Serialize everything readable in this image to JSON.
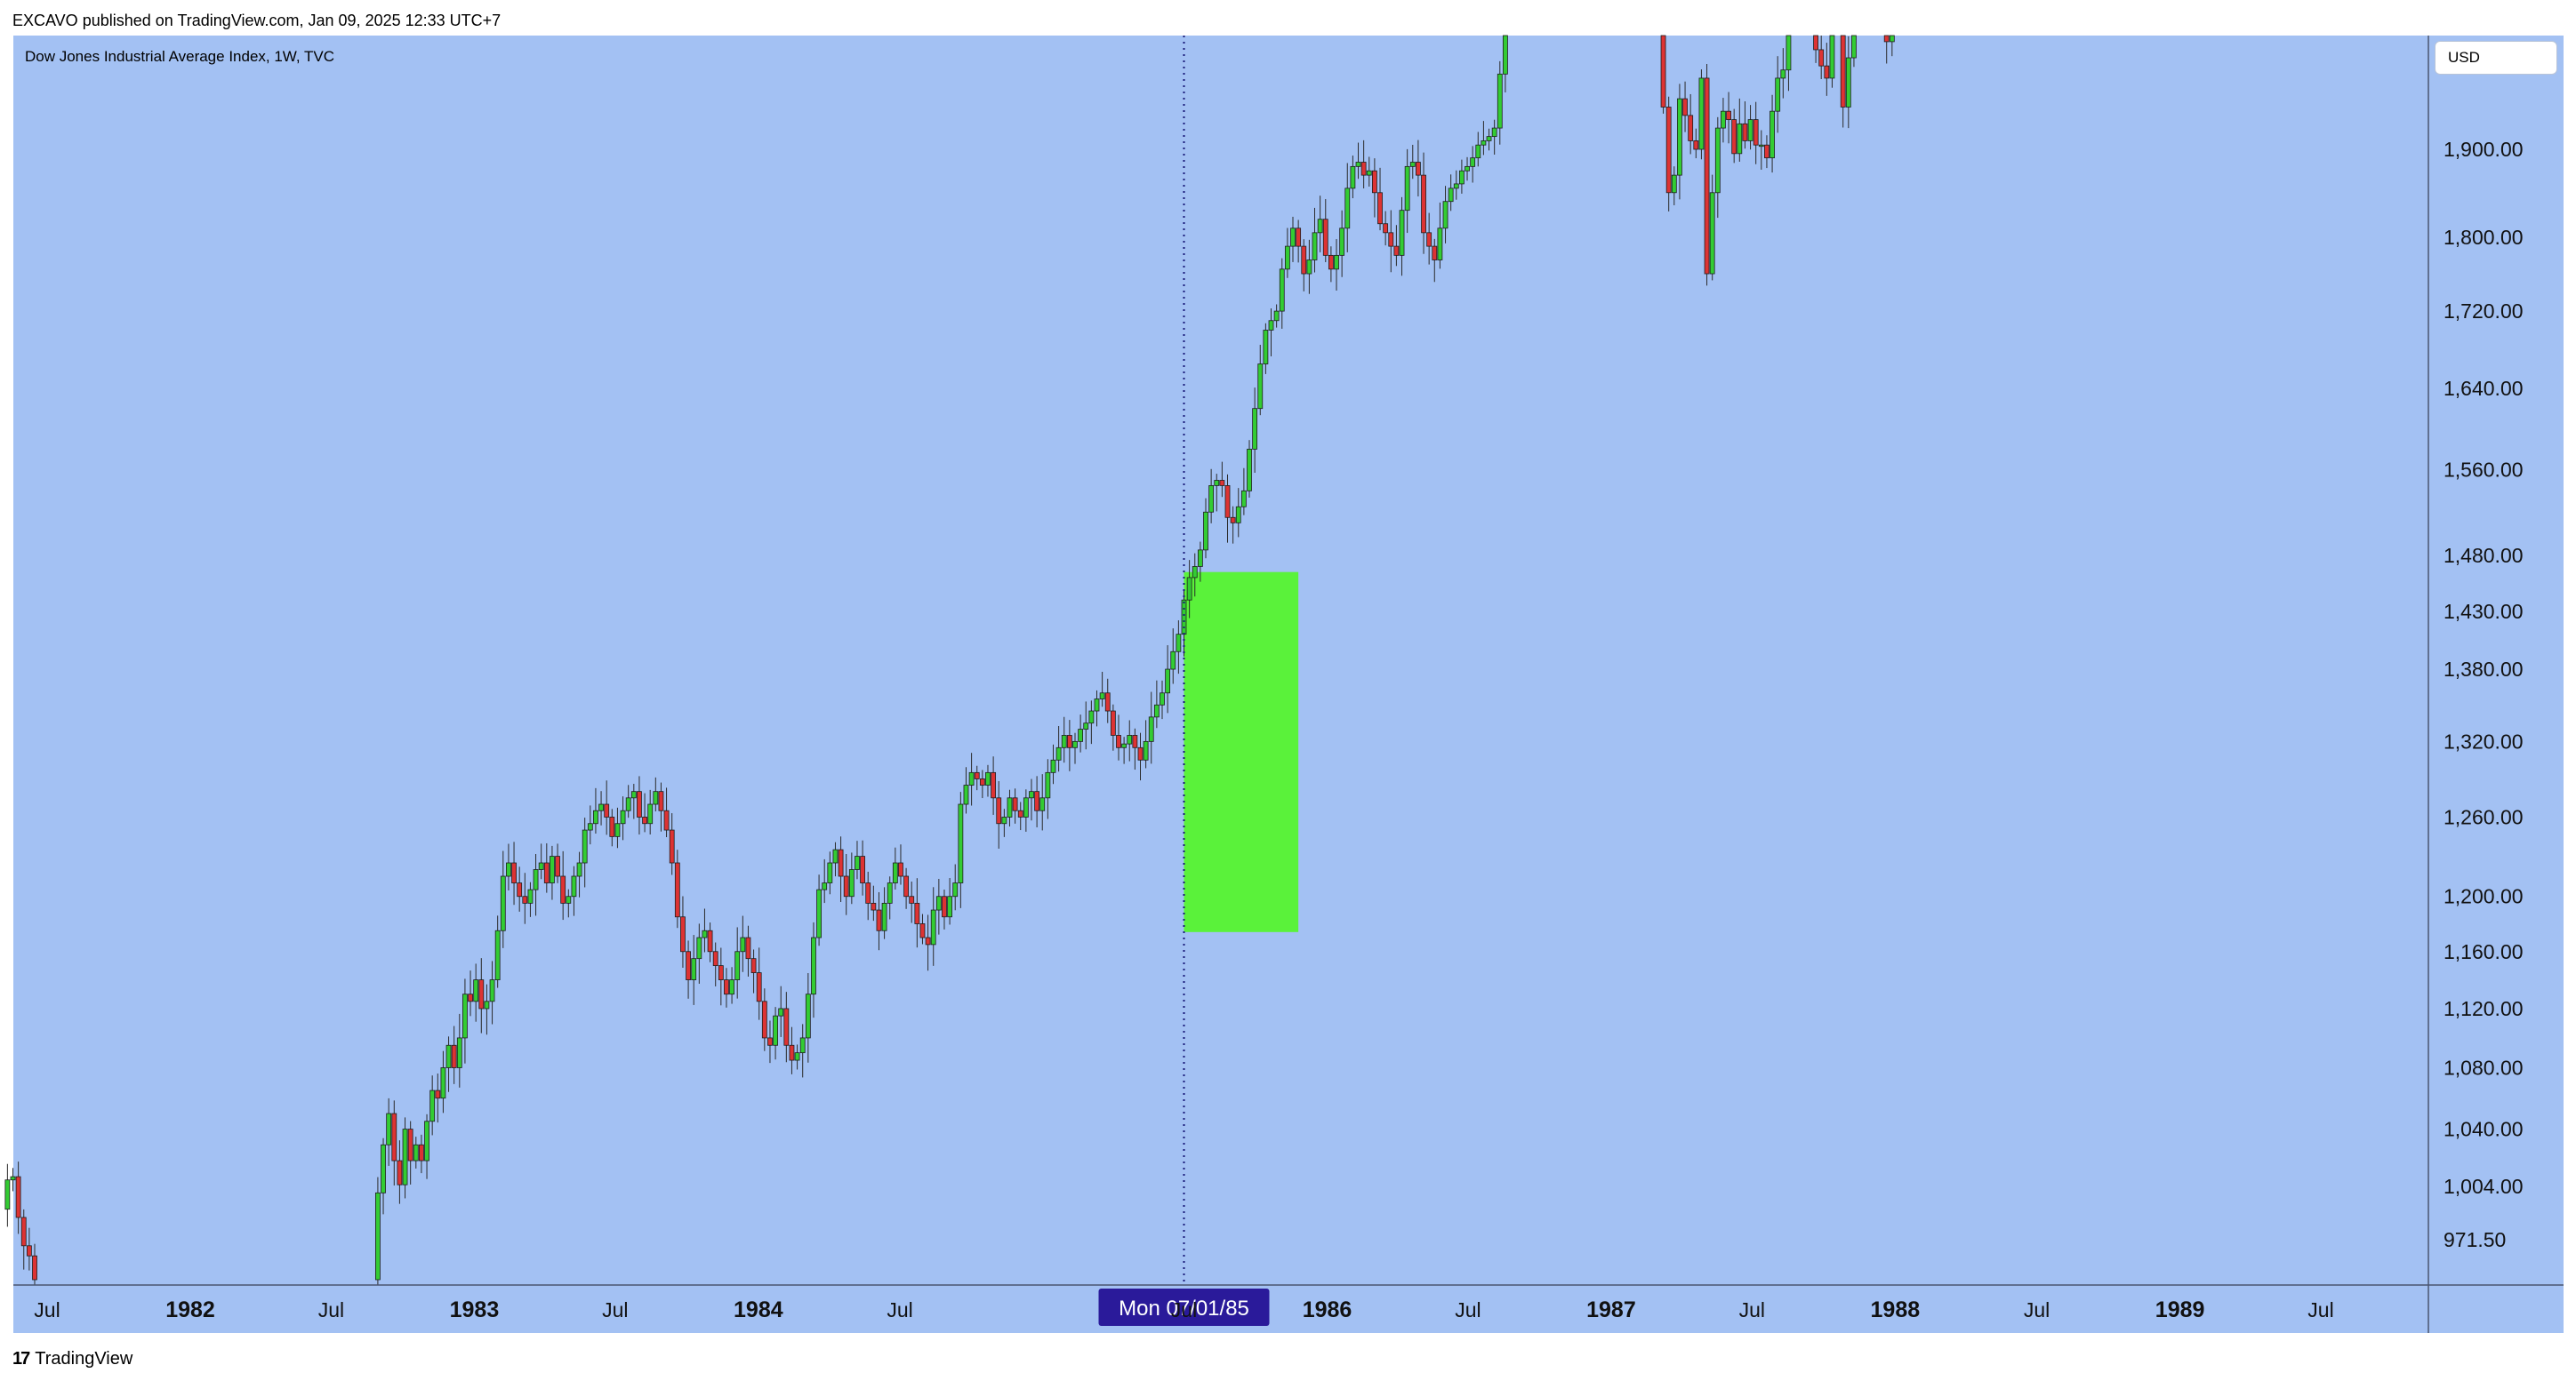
{
  "header": {
    "publisher_line": "EXCAVO published on TradingView.com, Jan 09, 2025 12:33 UTC+7"
  },
  "chart_header": {
    "symbol_title": "Dow Jones Industrial Average Index, 1W, TVC",
    "currency_label": "USD"
  },
  "footer": {
    "logo_glyph": "17",
    "brand": "TradingView"
  },
  "colors": {
    "background": "#a3c1f3",
    "up_candle": "#33cc33",
    "down_candle": "#dd3333",
    "highlight_box": "#5af23a",
    "crosshair": "#1a1a7a",
    "crosshair_label_bg": "#2a1a9a"
  },
  "chart_data": {
    "type": "candlestick",
    "title": "Dow Jones Industrial Average Index, 1W, TVC",
    "x_axis": {
      "type": "date",
      "range": [
        "1981-05-04",
        "1989-12-31"
      ],
      "ticks": [
        {
          "label": "Jul",
          "date": "1981-07-01",
          "bold": false
        },
        {
          "label": "1982",
          "date": "1982-01-01",
          "bold": true
        },
        {
          "label": "Jul",
          "date": "1982-07-01",
          "bold": false
        },
        {
          "label": "1983",
          "date": "1983-01-01",
          "bold": true
        },
        {
          "label": "Jul",
          "date": "1983-07-01",
          "bold": false
        },
        {
          "label": "1984",
          "date": "1984-01-01",
          "bold": true
        },
        {
          "label": "Jul",
          "date": "1984-07-01",
          "bold": false
        },
        {
          "label": "Jul",
          "date": "1985-07-01",
          "bold": false
        },
        {
          "label": "1986",
          "date": "1986-01-01",
          "bold": true
        },
        {
          "label": "Jul",
          "date": "1986-07-01",
          "bold": false
        },
        {
          "label": "1987",
          "date": "1987-01-01",
          "bold": true
        },
        {
          "label": "Jul",
          "date": "1987-07-01",
          "bold": false
        },
        {
          "label": "1988",
          "date": "1988-01-01",
          "bold": true
        },
        {
          "label": "Jul",
          "date": "1988-07-01",
          "bold": false
        },
        {
          "label": "1989",
          "date": "1989-01-01",
          "bold": true
        },
        {
          "label": "Jul",
          "date": "1989-07-01",
          "bold": false
        }
      ]
    },
    "y_axis": {
      "scale": "log",
      "range": [
        948,
        2040
      ],
      "ticks": [
        "971.50",
        "1,004.00",
        "1,040.00",
        "1,080.00",
        "1,120.00",
        "1,160.00",
        "1,200.00",
        "1,260.00",
        "1,320.00",
        "1,380.00",
        "1,430.00",
        "1,480.00",
        "1,560.00",
        "1,640.00",
        "1,720.00",
        "1,800.00",
        "1,900.00"
      ]
    },
    "crosshair": {
      "date": "1985-07-01",
      "label": "Mon 07/01/85"
    },
    "highlight_box": {
      "x_start": "1985-07-01",
      "x_end": "1985-11-25",
      "y_low": 1174,
      "y_high": 1465,
      "color": "#5af23a"
    },
    "series": [
      {
        "start": "1981-05-04",
        "interval_days": 7,
        "close": [
          990,
          1008,
          1010,
          985,
          968,
          962,
          948,
          948,
          948,
          948,
          948,
          948,
          948,
          948,
          948,
          948,
          948,
          948,
          948,
          948,
          948,
          948,
          948,
          948,
          948,
          948,
          948,
          948,
          948,
          948,
          948,
          948,
          948,
          948,
          948,
          948,
          948,
          948,
          948,
          948,
          948,
          948,
          948,
          948,
          948,
          948,
          948,
          948,
          948,
          948,
          948,
          948,
          948,
          948,
          948,
          948,
          948,
          948,
          948,
          948,
          948,
          948,
          948,
          948,
          948,
          948,
          948,
          948,
          948,
          1000,
          1030,
          1050,
          1020,
          1005,
          1040,
          1020,
          1030,
          1020,
          1045,
          1065,
          1060,
          1080,
          1095,
          1080,
          1100,
          1130,
          1125,
          1140,
          1120,
          1125,
          1140,
          1175,
          1215,
          1225,
          1210,
          1200,
          1195,
          1205,
          1220,
          1225,
          1210,
          1230,
          1215,
          1195,
          1200,
          1215,
          1225,
          1250,
          1255,
          1265,
          1270,
          1260,
          1245,
          1255,
          1265,
          1275,
          1280,
          1260,
          1255,
          1270,
          1280,
          1265,
          1250,
          1225,
          1185,
          1160,
          1140,
          1155,
          1170,
          1175,
          1160,
          1150,
          1140,
          1130,
          1140,
          1160,
          1170,
          1155,
          1145,
          1125,
          1100,
          1095,
          1115,
          1120,
          1095,
          1085,
          1090,
          1100,
          1130,
          1170,
          1205,
          1210,
          1225,
          1235,
          1215,
          1200,
          1220,
          1230,
          1210,
          1195,
          1190,
          1175,
          1195,
          1210,
          1225,
          1215,
          1200,
          1195,
          1180,
          1170,
          1165,
          1190,
          1200,
          1185,
          1200,
          1210,
          1270,
          1285,
          1295,
          1290,
          1285,
          1295,
          1275,
          1255,
          1260,
          1275,
          1265,
          1260,
          1275,
          1280,
          1265,
          1275,
          1295,
          1305,
          1315,
          1325,
          1315,
          1320,
          1330,
          1335,
          1345,
          1355,
          1360,
          1345,
          1325,
          1315,
          1318,
          1325,
          1315,
          1305,
          1320,
          1340,
          1350,
          1360,
          1380,
          1395,
          1410,
          1440,
          1460,
          1470,
          1485,
          1520,
          1545,
          1550,
          1545,
          1515,
          1510,
          1525,
          1540,
          1580,
          1620,
          1665,
          1700,
          1710,
          1720,
          1765,
          1790,
          1810,
          1790,
          1760,
          1775,
          1805,
          1820,
          1780,
          1765,
          1780,
          1810,
          1855,
          1880,
          1885,
          1870,
          1875,
          1850,
          1815,
          1805,
          1790,
          1780,
          1830,
          1880,
          1885,
          1870,
          1805,
          1790,
          1775,
          1810,
          1840,
          1855,
          1860,
          1875,
          1880,
          1890,
          1905,
          1910,
          1915,
          1925,
          1990,
          2040,
          2040,
          2040,
          2040,
          2040,
          2040,
          2040,
          2040,
          2040,
          2040,
          2040,
          2040,
          2040,
          2040,
          2040,
          2040,
          2040,
          2040,
          2040,
          2040,
          2040,
          2040,
          2040,
          2040,
          2040,
          2040,
          2040,
          2040,
          2040,
          1950,
          1850,
          1870,
          1960,
          1940,
          1910,
          1900,
          1985,
          1760,
          1850,
          1925,
          1945,
          1935,
          1895,
          1930,
          1910,
          1935,
          1905,
          1905,
          1890,
          1945,
          1985,
          1995,
          2040,
          2040,
          2040,
          2040,
          2040,
          2020,
          2000,
          1985,
          2040,
          2040,
          1950,
          2010,
          2040,
          2040,
          2040,
          2040,
          2040,
          2040,
          2030,
          2040,
          2040,
          2040,
          2040,
          2040,
          2040
        ]
      }
    ]
  }
}
